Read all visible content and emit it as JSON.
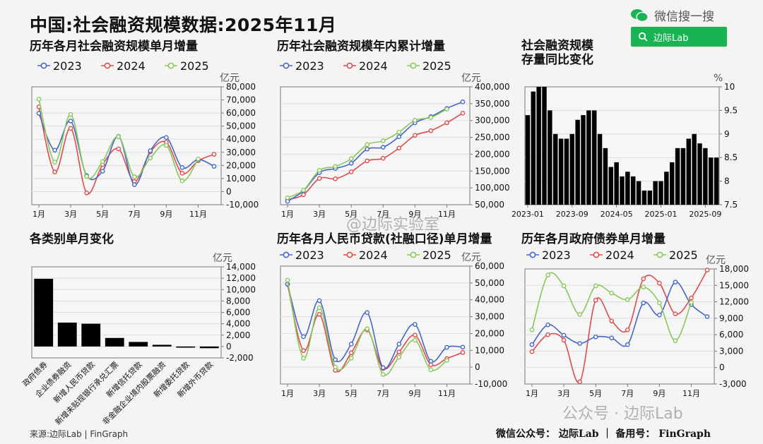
{
  "header": {
    "title": "中国:社会融资规模数据:2025年11月",
    "wechat_label": "微信搜一搜",
    "search_text": "边际Lab"
  },
  "watermarks": {
    "weibo": "@边际实验室",
    "public": "公众号 · 边际Lab"
  },
  "footer": {
    "source": "来源:边际Lab | FinGraph",
    "account": "微信公众号： 边际Lab  ｜  备用号： FinGraph"
  },
  "colors": {
    "2023": "#4666c6",
    "2024": "#e04b4b",
    "2025": "#86c85a",
    "bar": "#000000"
  },
  "chart_data": [
    {
      "id": "c1",
      "type": "line",
      "title": "历年各月社会融资规模单月增量",
      "unit": "亿元",
      "x": [
        "1月",
        "2月",
        "3月",
        "4月",
        "5月",
        "6月",
        "7月",
        "8月",
        "9月",
        "10月",
        "11月",
        "12月"
      ],
      "xticks": [
        "1月",
        "3月",
        "5月",
        "7月",
        "9月",
        "11月"
      ],
      "ylim": [
        -10000,
        80000
      ],
      "yticks": [
        "80,000",
        "70,000",
        "60,000",
        "50,000",
        "40,000",
        "30,000",
        "20,000",
        "10,000",
        "0",
        "-10,000"
      ],
      "series": [
        {
          "name": "2023",
          "values": [
            59800,
            31600,
            53900,
            12200,
            15600,
            42200,
            5300,
            31200,
            41300,
            18400,
            24500,
            19300
          ]
        },
        {
          "name": "2024",
          "values": [
            64700,
            15000,
            48300,
            -1000,
            20600,
            32600,
            7700,
            30300,
            37600,
            14000,
            23500,
            28500
          ]
        },
        {
          "name": "2025",
          "values": [
            70600,
            22500,
            58900,
            11600,
            22900,
            42000,
            11300,
            25700,
            35300,
            8200,
            24900,
            null
          ]
        }
      ]
    },
    {
      "id": "c2",
      "type": "line",
      "title": "历年社会融资规模年内累计增量",
      "unit": "亿元",
      "x": [
        "1月",
        "2月",
        "3月",
        "4月",
        "5月",
        "6月",
        "7月",
        "8月",
        "9月",
        "10月",
        "11月",
        "12月"
      ],
      "xticks": [
        "1月",
        "3月",
        "5月",
        "7月",
        "9月",
        "11月"
      ],
      "ylim": [
        50000,
        400000
      ],
      "yticks": [
        "400,000",
        "350,000",
        "300,000",
        "250,000",
        "200,000",
        "150,000",
        "100,000",
        "50,000"
      ],
      "series": [
        {
          "name": "2023",
          "values": [
            59800,
            91400,
            145300,
            157500,
            173100,
            215300,
            220600,
            251800,
            293100,
            311500,
            336000,
            355300
          ]
        },
        {
          "name": "2024",
          "values": [
            64700,
            79700,
            128000,
            127000,
            147600,
            180200,
            187900,
            218200,
            255800,
            269800,
            293300,
            321800
          ]
        },
        {
          "name": "2025",
          "values": [
            70600,
            93100,
            152000,
            163600,
            186500,
            228500,
            239800,
            265500,
            300800,
            309000,
            333900,
            null
          ]
        }
      ]
    },
    {
      "id": "c3",
      "type": "bar",
      "title": "社会融资规模\n存量同比变化",
      "unit": "%",
      "ylim": [
        7.5,
        10
      ],
      "yticks": [
        "10",
        "9.5",
        "9",
        "8.5",
        "8",
        "7.5"
      ],
      "xticks": [
        "2023-01",
        "2023-09",
        "2024-05",
        "2025-01",
        "2025-09"
      ],
      "x": [
        "2023-01",
        "2023-02",
        "2023-03",
        "2023-04",
        "2023-05",
        "2023-06",
        "2023-07",
        "2023-08",
        "2023-09",
        "2023-10",
        "2023-11",
        "2023-12",
        "2024-01",
        "2024-02",
        "2024-03",
        "2024-04",
        "2024-05",
        "2024-06",
        "2024-07",
        "2024-08",
        "2024-09",
        "2024-10",
        "2024-11",
        "2024-12",
        "2025-01",
        "2025-02",
        "2025-03",
        "2025-04",
        "2025-05",
        "2025-06",
        "2025-07",
        "2025-08",
        "2025-09",
        "2025-10",
        "2025-11"
      ],
      "values": [
        9.4,
        9.9,
        10.0,
        10.0,
        9.5,
        9.0,
        8.9,
        8.9,
        9.0,
        9.3,
        9.4,
        9.5,
        9.5,
        9.0,
        8.7,
        8.3,
        8.4,
        8.1,
        8.2,
        8.1,
        8.0,
        7.8,
        7.8,
        8.0,
        8.0,
        8.2,
        8.4,
        8.7,
        8.7,
        8.9,
        9.0,
        8.8,
        8.7,
        8.5,
        8.5
      ]
    },
    {
      "id": "c4",
      "type": "bar",
      "title": "各类别单月变化",
      "unit": "亿元",
      "ylim": [
        -2000,
        14000
      ],
      "yticks": [
        "14,000",
        "12,000",
        "10,000",
        "8,000",
        "6,000",
        "4,000",
        "2,000",
        "0",
        "-2,000"
      ],
      "categories": [
        "政府债券",
        "企业债券融资",
        "新增人民币贷款",
        "新增未贴现银行承兑汇票",
        "新增信托贷款",
        "非金融企业境内股票融资",
        "新增委托贷款",
        "新增外币贷款"
      ],
      "values": [
        11900,
        4200,
        4000,
        1500,
        800,
        300,
        -200,
        -300
      ]
    },
    {
      "id": "c5",
      "type": "line",
      "title": "历年各月人民币贷款(社融口径)单月增量",
      "unit": "亿元",
      "x": [
        "1月",
        "2月",
        "3月",
        "4月",
        "5月",
        "6月",
        "7月",
        "8月",
        "9月",
        "10月",
        "11月",
        "12月"
      ],
      "xticks": [
        "1月",
        "3月",
        "5月",
        "7月",
        "9月",
        "11月"
      ],
      "ylim": [
        -10000,
        60000
      ],
      "yticks": [
        "60,000",
        "50,000",
        "40,000",
        "30,000",
        "20,000",
        "10,000",
        "0",
        "-10,000"
      ],
      "series": [
        {
          "name": "2023",
          "values": [
            49300,
            18100,
            39500,
            4400,
            13700,
            32400,
            -300,
            13700,
            25400,
            3500,
            11800,
            11900
          ]
        },
        {
          "name": "2024",
          "values": [
            49200,
            9800,
            31400,
            -1900,
            8500,
            22100,
            -800,
            9000,
            19000,
            1500,
            5100,
            8700
          ]
        },
        {
          "name": "2025",
          "values": [
            51700,
            5300,
            35300,
            100,
            5400,
            22800,
            -4300,
            5900,
            16000,
            -1600,
            4000,
            null
          ]
        }
      ]
    },
    {
      "id": "c6",
      "type": "line",
      "title": "历年各月政府债券单月增量",
      "unit": "亿元",
      "x": [
        "1月",
        "2月",
        "3月",
        "4月",
        "5月",
        "6月",
        "7月",
        "8月",
        "9月",
        "10月",
        "11月",
        "12月"
      ],
      "xticks": [
        "1月",
        "3月",
        "5月",
        "7月",
        "9月",
        "11月"
      ],
      "ylim": [
        -3000,
        18000
      ],
      "yticks": [
        "18,000",
        "15,000",
        "12,000",
        "9,000",
        "6,000",
        "3,000",
        "0",
        "-3,000"
      ],
      "series": [
        {
          "name": "2023",
          "values": [
            4200,
            7800,
            5900,
            4400,
            5600,
            5400,
            4200,
            11800,
            9600,
            15600,
            11500,
            9300
          ]
        },
        {
          "name": "2024",
          "values": [
            2900,
            6000,
            5000,
            -2600,
            12300,
            8500,
            6900,
            16200,
            15400,
            9800,
            12700,
            17800
          ]
        },
        {
          "name": "2025",
          "values": [
            6900,
            16900,
            14900,
            9700,
            14900,
            13600,
            12400,
            14700,
            11800,
            4900,
            11900,
            null
          ]
        }
      ]
    }
  ]
}
